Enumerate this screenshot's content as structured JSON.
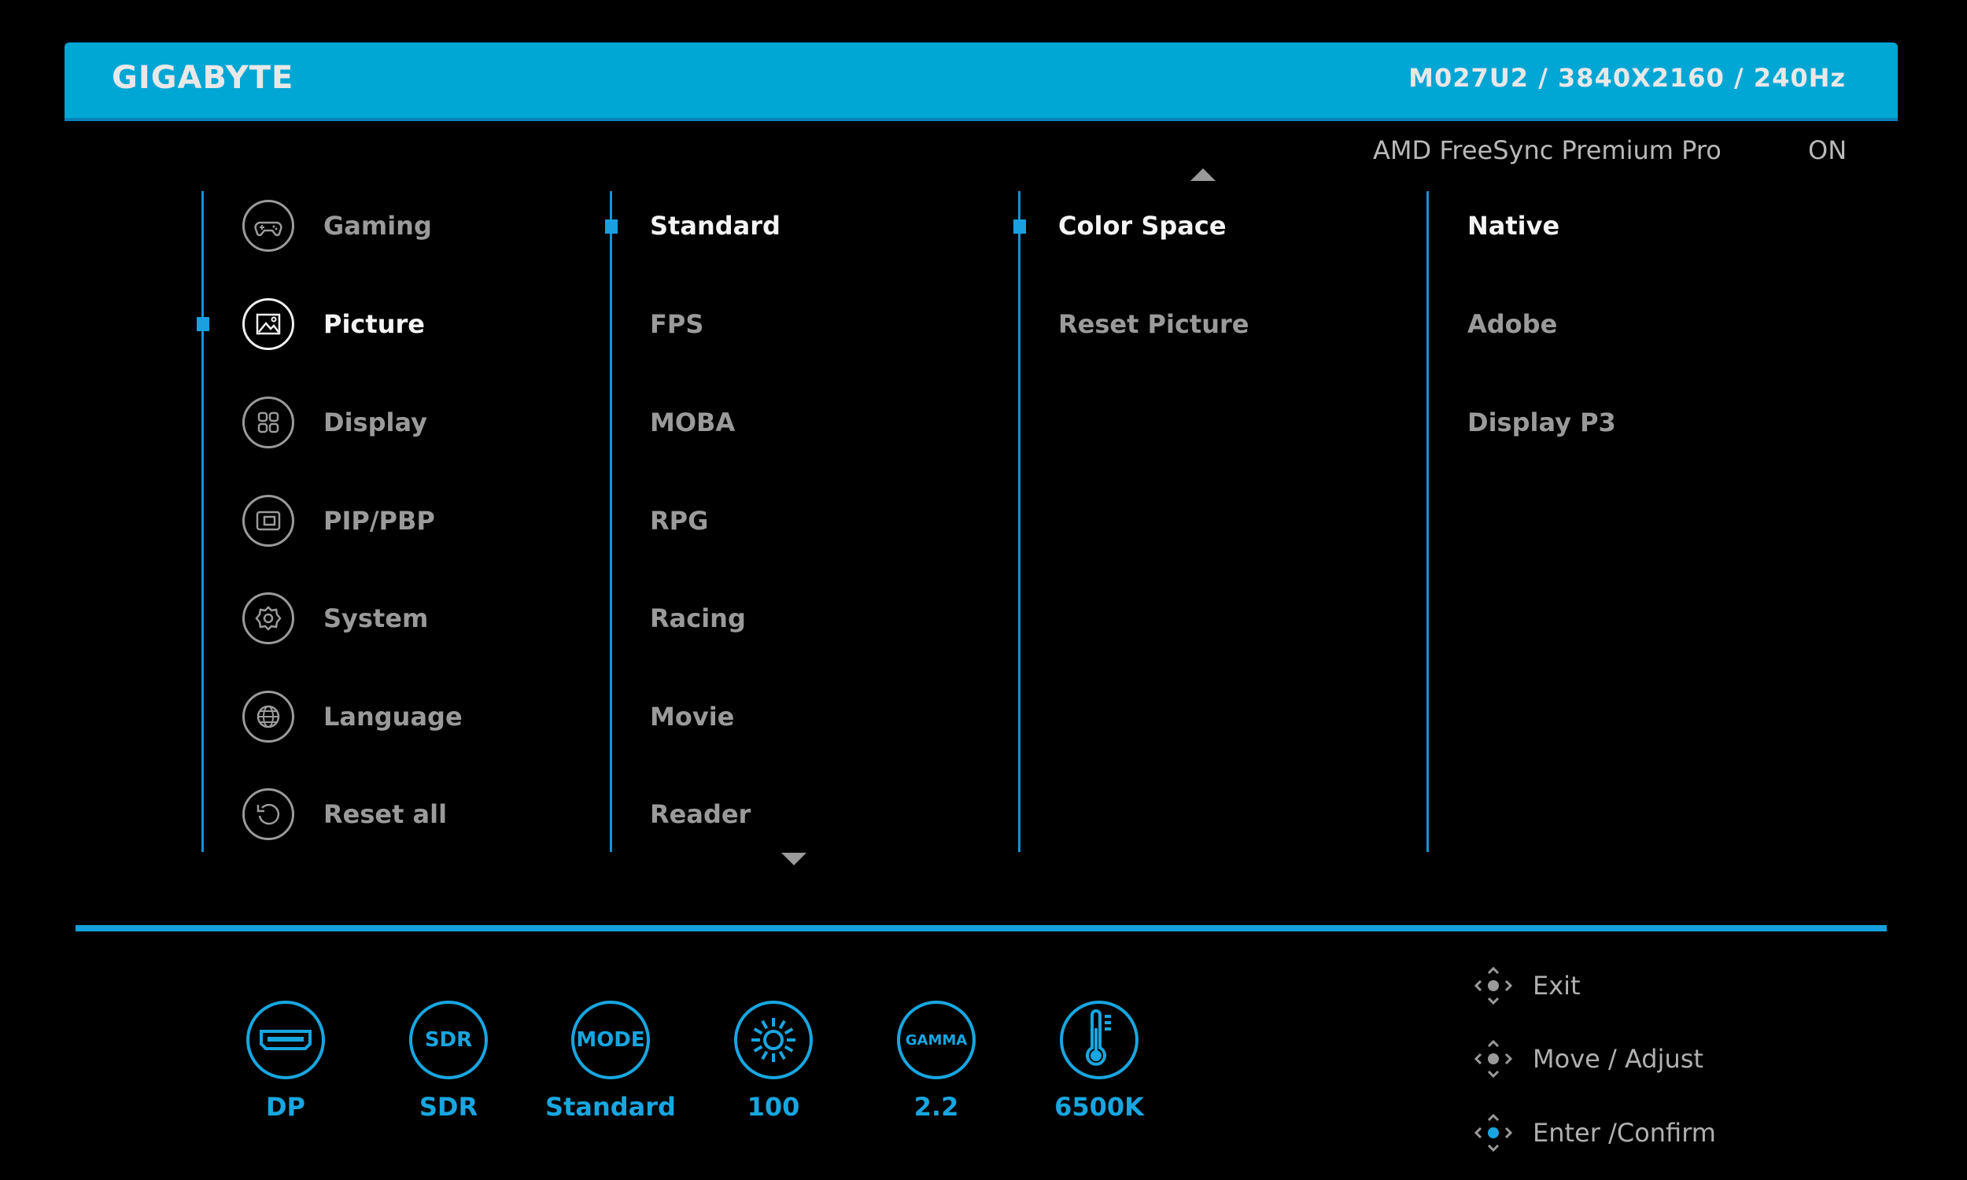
{
  "header": {
    "brand": "GIGABYTE",
    "model_info": "M027U2  /  3840X2160  / 240Hz"
  },
  "status": {
    "label": "AMD FreeSync Premium Pro",
    "value": "ON"
  },
  "main_menu": [
    {
      "label": "Gaming",
      "icon": "gamepad-icon"
    },
    {
      "label": "Picture",
      "icon": "picture-icon",
      "selected": true
    },
    {
      "label": "Display",
      "icon": "display-grid-icon"
    },
    {
      "label": "PIP/PBP",
      "icon": "pip-icon"
    },
    {
      "label": "System",
      "icon": "gear-icon"
    },
    {
      "label": "Language",
      "icon": "globe-icon"
    },
    {
      "label": "Reset all",
      "icon": "reset-icon"
    }
  ],
  "picture_modes": [
    "Standard",
    "FPS",
    "MOBA",
    "RPG",
    "Racing",
    "Movie",
    "Reader"
  ],
  "picture_submenu": [
    "Color Space",
    "Reset Picture"
  ],
  "color_space_options": [
    "Native",
    "Adobe",
    "Display P3"
  ],
  "status_bar": [
    {
      "icon": "displayport-icon",
      "value": "DP"
    },
    {
      "icon": "sdr-icon",
      "icon_text": "SDR",
      "value": "SDR"
    },
    {
      "icon": "mode-icon",
      "icon_text": "MODE",
      "value": "Standard"
    },
    {
      "icon": "brightness-icon",
      "value": "100"
    },
    {
      "icon": "gamma-icon",
      "icon_text": "GAMMA",
      "value": "2.2"
    },
    {
      "icon": "thermometer-icon",
      "value": "6500K"
    }
  ],
  "nav_hints": [
    "Exit",
    "Move / Adjust",
    "Enter  /Confirm"
  ],
  "colors": {
    "accent": "#00a6d4",
    "line": "#1493d8"
  }
}
